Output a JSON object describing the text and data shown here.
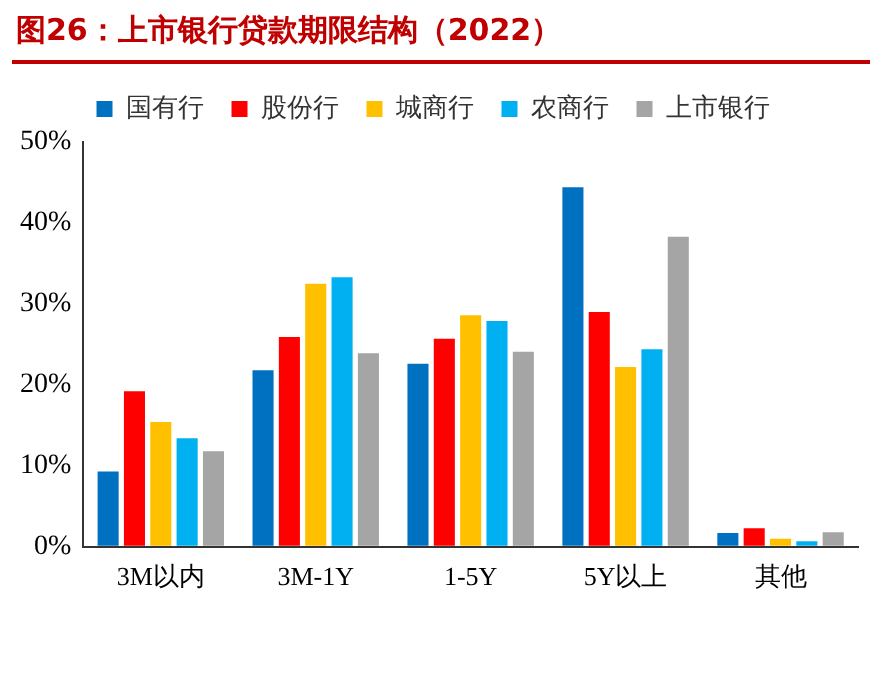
{
  "chart_data": {
    "type": "bar",
    "title": "图26：上市银行贷款期限结构（2022）",
    "categories": [
      "3M以内",
      "3M-1Y",
      "1-5Y",
      "5Y以上",
      "其他"
    ],
    "series": [
      {
        "name": "国有行",
        "color": "#0070c0",
        "values": [
          9.3,
          21.8,
          22.6,
          44.4,
          1.7
        ]
      },
      {
        "name": "股份行",
        "color": "#ff0000",
        "values": [
          19.2,
          25.9,
          25.7,
          29.0,
          2.3
        ]
      },
      {
        "name": "城商行",
        "color": "#ffc000",
        "values": [
          15.4,
          32.5,
          28.6,
          22.2,
          1.0
        ]
      },
      {
        "name": "农商行",
        "color": "#00b0f0",
        "values": [
          13.4,
          33.3,
          27.9,
          24.4,
          0.7
        ]
      },
      {
        "name": "上市银行",
        "color": "#a5a5a5",
        "values": [
          11.8,
          23.9,
          24.1,
          38.3,
          1.8
        ]
      }
    ],
    "ylim": [
      0,
      50
    ],
    "yticks": [
      {
        "value": 0,
        "label": "0%"
      },
      {
        "value": 10,
        "label": "10%"
      },
      {
        "value": 20,
        "label": "20%"
      },
      {
        "value": 30,
        "label": "30%"
      },
      {
        "value": 40,
        "label": "40%"
      },
      {
        "value": 50,
        "label": "50%"
      }
    ],
    "grid": false,
    "legend": "top"
  }
}
